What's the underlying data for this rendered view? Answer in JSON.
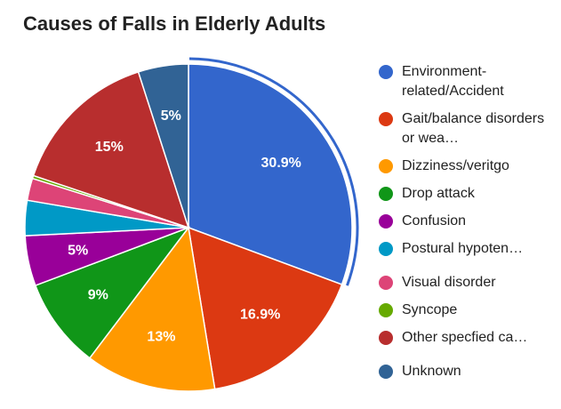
{
  "chart_data": {
    "type": "pie",
    "title": "Causes of Falls in Elderly Adults",
    "start_angle_deg": 0,
    "direction": "clockwise",
    "highlighted_slice": "Environment-related/Accident",
    "legend_position": "right",
    "slices": [
      {
        "label": "Environment-related/Accident",
        "legend_display": "Environment-related/Accident",
        "value": 30.9,
        "color": "#3366cc",
        "value_label": "30.9%"
      },
      {
        "label": "Gait/balance disorders or weakness",
        "legend_display": "Gait/balance disorders or wea…",
        "value": 16.9,
        "color": "#dc3912",
        "value_label": "16.9%"
      },
      {
        "label": "Dizziness/veritgo",
        "legend_display": "Dizziness/veritgo",
        "value": 13,
        "color": "#ff9900",
        "value_label": "13%"
      },
      {
        "label": "Drop attack",
        "legend_display": "Drop attack",
        "value": 9,
        "color": "#109618",
        "value_label": "9%"
      },
      {
        "label": "Confusion",
        "legend_display": "Confusion",
        "value": 5,
        "color": "#990099",
        "value_label": "5%"
      },
      {
        "label": "Postural hypotension",
        "legend_display": "Postural hypoten…",
        "value": 3.5,
        "color": "#0099c6",
        "value_label": ""
      },
      {
        "label": "Visual disorder",
        "legend_display": "Visual disorder",
        "value": 2.2,
        "color": "#dd4477",
        "value_label": ""
      },
      {
        "label": "Syncope",
        "legend_display": "Syncope",
        "value": 0.3,
        "color": "#66aa00",
        "value_label": ""
      },
      {
        "label": "Other specfied causes",
        "legend_display": "Other specfied ca…",
        "value": 15,
        "color": "#b82e2e",
        "value_label": "15%"
      },
      {
        "label": "Unknown",
        "legend_display": "Unknown",
        "value": 5,
        "color": "#316395",
        "value_label": "5%"
      }
    ]
  }
}
